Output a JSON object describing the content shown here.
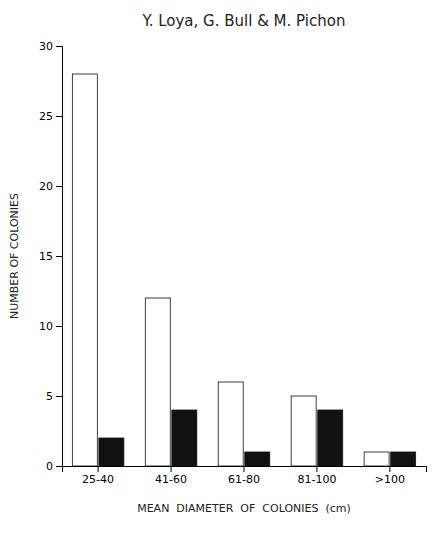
{
  "chart_data": {
    "type": "bar",
    "title": "Y. Loya, G. Bull & M. Pichon",
    "categories": [
      "25-40",
      "41-60",
      "61-80",
      "81-100",
      ">100"
    ],
    "series": [
      {
        "color": "#ffffff",
        "values": [
          28,
          12,
          6,
          5,
          1
        ]
      },
      {
        "color": "#111111",
        "values": [
          2,
          4,
          1,
          4,
          1
        ]
      }
    ],
    "xlabel": "MEAN  DIAMETER  OF  COLONIES  (cm)",
    "ylabel": "NUMBER OF COLONIES",
    "ylim": [
      0,
      30
    ],
    "yticks": [
      0,
      5,
      10,
      15,
      20,
      25,
      30
    ],
    "grid": false
  }
}
